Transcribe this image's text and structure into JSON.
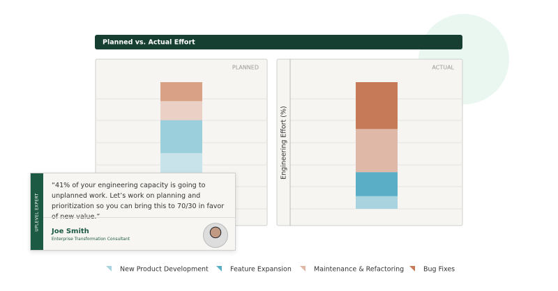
{
  "header": {
    "title": "Planned vs. Actual Effort"
  },
  "chart_data": {
    "type": "stacked-bar",
    "categories": [
      "PLANNED",
      "ACTUAL"
    ],
    "ylabel": "Engineering Effort (%)",
    "ylim": [
      0,
      100
    ],
    "series": [
      {
        "name": "New Product Development",
        "color": "#a9d4df",
        "colors": [
          "#c9e3ea",
          "#a9d4df"
        ],
        "values": [
          44,
          10
        ]
      },
      {
        "name": "Feature Expansion",
        "color": "#5aaec6",
        "colors": [
          "#9ccfdc",
          "#5aaec6"
        ],
        "values": [
          26,
          19
        ]
      },
      {
        "name": "Maintenance & Refactoring",
        "color": "#dfb8a8",
        "colors": [
          "#ead0c5",
          "#dfb8a8"
        ],
        "values": [
          15,
          34
        ]
      },
      {
        "name": "Bug Fixes",
        "color": "#c67a58",
        "colors": [
          "#d9a286",
          "#c67a58"
        ],
        "values": [
          15,
          37
        ]
      }
    ]
  },
  "quote": {
    "badge": "UPLEVEL EXPERT",
    "text": "“41% of your engineering capacity is going to unplanned work. Let’s work on planning and prioritization so you can bring this to 70/30 in favor of new value.”",
    "name": "Joe Smith",
    "role": "Enterprise Transformation Consultant"
  }
}
